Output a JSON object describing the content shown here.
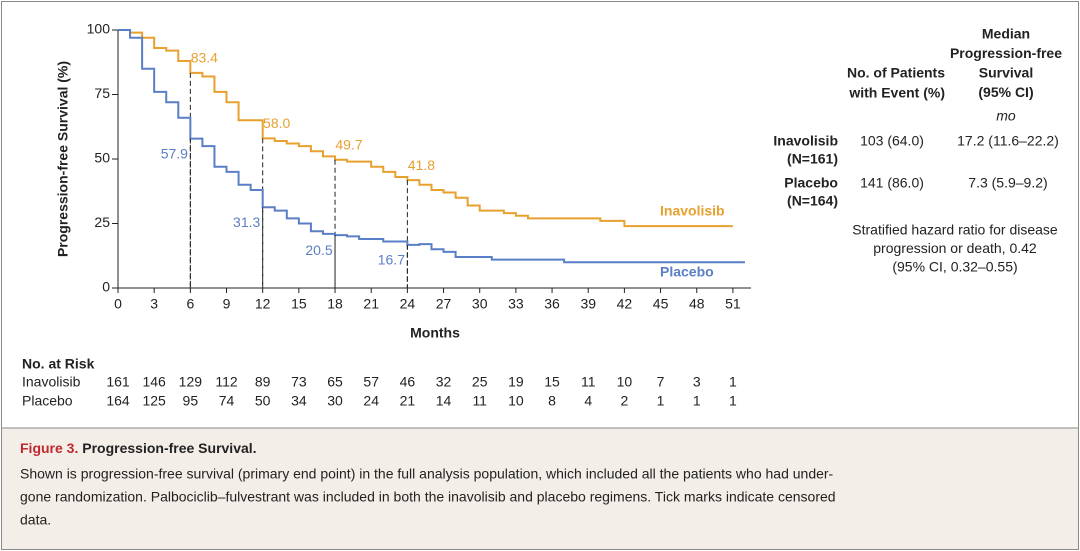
{
  "chart_data": {
    "type": "step",
    "y_label": "Progression-free Survival (%)",
    "x_label": "Months",
    "xlim": [
      0,
      52.5
    ],
    "ylim": [
      0,
      100
    ],
    "xticks": [
      0,
      3,
      6,
      9,
      12,
      15,
      18,
      21,
      24,
      27,
      30,
      33,
      36,
      39,
      42,
      45,
      48,
      51
    ],
    "yticks": [
      0,
      25,
      50,
      75,
      100
    ],
    "x": [
      0,
      1,
      2,
      3,
      4,
      5,
      6,
      7,
      8,
      9,
      10,
      11,
      12,
      13,
      14,
      15,
      16,
      17,
      18,
      19,
      20,
      21,
      22,
      23,
      24,
      25,
      26,
      27,
      28,
      29,
      30,
      31,
      32,
      33,
      34,
      35,
      36,
      37,
      38,
      39,
      40,
      41,
      42,
      43,
      44,
      45,
      46,
      47,
      48,
      49,
      50,
      51,
      52
    ],
    "series": [
      {
        "name": "Inavolisib",
        "color": "#e8a02f",
        "values": [
          100,
          99,
          97,
          93,
          92,
          88,
          83.4,
          82,
          76,
          72,
          65,
          65,
          58.0,
          57,
          56,
          55,
          53,
          51,
          49.7,
          49,
          49,
          47,
          45,
          43,
          41.8,
          40,
          38,
          37,
          35,
          32,
          30,
          30,
          29,
          28,
          27,
          27,
          27,
          27,
          27,
          27,
          26,
          26,
          24,
          24,
          24,
          24,
          24,
          24,
          24,
          24,
          24,
          24,
          null
        ],
        "landmarks": [
          {
            "x": 6,
            "value": 83.4,
            "label": "83.4"
          },
          {
            "x": 12,
            "value": 58.0,
            "label": "58.0"
          },
          {
            "x": 18,
            "value": 49.7,
            "label": "49.7"
          },
          {
            "x": 24,
            "value": 41.8,
            "label": "41.8"
          }
        ]
      },
      {
        "name": "Placebo",
        "color": "#5b7fc7",
        "values": [
          100,
          97,
          85,
          76,
          72,
          66,
          57.9,
          55,
          47,
          45,
          40,
          38,
          31.3,
          30,
          27,
          25,
          22,
          21,
          20.5,
          20,
          19,
          19,
          18,
          18,
          16.7,
          17,
          15,
          14,
          12,
          12,
          12,
          11,
          11,
          11,
          11,
          11,
          11,
          10,
          10,
          10,
          10,
          10,
          10,
          10,
          10,
          10,
          10,
          10,
          10,
          10,
          10,
          10,
          10
        ],
        "landmarks": [
          {
            "x": 6,
            "value": 57.9,
            "label": "57.9"
          },
          {
            "x": 12,
            "value": 31.3,
            "label": "31.3"
          },
          {
            "x": 18,
            "value": 20.5,
            "label": "20.5"
          },
          {
            "x": 24,
            "value": 16.7,
            "label": "16.7"
          }
        ]
      }
    ],
    "risk_table": {
      "title": "No. at Risk",
      "rows": [
        {
          "name": "Inavolisib",
          "values": [
            161,
            146,
            129,
            112,
            89,
            73,
            65,
            57,
            46,
            32,
            25,
            19,
            15,
            11,
            10,
            7,
            3,
            1
          ]
        },
        {
          "name": "Placebo",
          "values": [
            164,
            125,
            95,
            74,
            50,
            34,
            30,
            24,
            21,
            14,
            11,
            10,
            8,
            4,
            2,
            1,
            1,
            1
          ]
        }
      ]
    }
  },
  "summary_table": {
    "headers": [
      [
        "No. of Patients",
        "with Event (%)"
      ],
      [
        "Median",
        "Progression-free",
        "Survival",
        "(95% CI)"
      ]
    ],
    "unit": "mo",
    "rows": [
      {
        "group": [
          "Inavolisib",
          "(N=161)"
        ],
        "events": "103 (64.0)",
        "median": "17.2 (11.6–22.2)"
      },
      {
        "group": [
          "Placebo",
          "(N=164)"
        ],
        "events": "141 (86.0)",
        "median": "7.3 (5.9–9.2)"
      }
    ],
    "note": [
      "Stratified hazard ratio for disease",
      "progression or death, 0.42",
      "(95% CI, 0.32–0.55)"
    ]
  },
  "caption": {
    "label": "Figure 3.",
    "title": "Progression-free Survival.",
    "lines": [
      "Shown is progression-free survival (primary end point) in the full analysis population, which included all the patients who had under-",
      "gone randomization. Palbociclib–fulvestrant was included in both the inavolisib and placebo regimens. Tick marks indicate censored",
      "data."
    ]
  }
}
